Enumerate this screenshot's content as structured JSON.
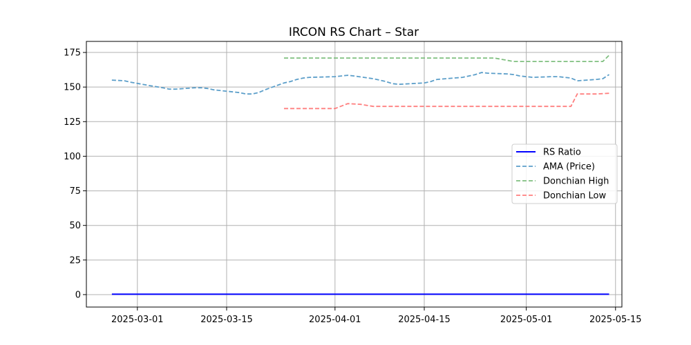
{
  "chart_data": {
    "type": "line",
    "title": "IRCON RS Chart – Star",
    "xlabel": "",
    "ylabel": "",
    "x_ticks": [
      "2025-03-01",
      "2025-03-15",
      "2025-04-01",
      "2025-04-15",
      "2025-05-01",
      "2025-05-15"
    ],
    "y_ticks": [
      0,
      25,
      50,
      75,
      100,
      125,
      150,
      175
    ],
    "xlim": [
      "2025-02-21",
      "2025-05-16"
    ],
    "ylim": [
      -9,
      183
    ],
    "grid": true,
    "legend_position": "center-right",
    "series": [
      {
        "name": "RS Ratio",
        "color": "#0000ff",
        "style": "solid",
        "x": [
          "2025-02-25",
          "2025-05-14"
        ],
        "y": [
          0.3,
          0.3
        ]
      },
      {
        "name": "AMA (Price)",
        "color": "#5b9ec9",
        "style": "dashed",
        "x": [
          "2025-02-25",
          "2025-02-27",
          "2025-02-28",
          "2025-03-03",
          "2025-03-05",
          "2025-03-06",
          "2025-03-07",
          "2025-03-10",
          "2025-03-11",
          "2025-03-12",
          "2025-03-13",
          "2025-03-17",
          "2025-03-18",
          "2025-03-19",
          "2025-03-20",
          "2025-03-21",
          "2025-03-24",
          "2025-03-25",
          "2025-03-26",
          "2025-03-27",
          "2025-03-28",
          "2025-04-01",
          "2025-04-02",
          "2025-04-03",
          "2025-04-04",
          "2025-04-07",
          "2025-04-08",
          "2025-04-09",
          "2025-04-10",
          "2025-04-11",
          "2025-04-15",
          "2025-04-16",
          "2025-04-17",
          "2025-04-21",
          "2025-04-22",
          "2025-04-23",
          "2025-04-24",
          "2025-04-25",
          "2025-04-28",
          "2025-04-29",
          "2025-04-30",
          "2025-05-02",
          "2025-05-05",
          "2025-05-06",
          "2025-05-07",
          "2025-05-08",
          "2025-05-09",
          "2025-05-12",
          "2025-05-13",
          "2025-05-14"
        ],
        "y": [
          155,
          154.5,
          153.5,
          151,
          149.5,
          148.5,
          148.5,
          149.5,
          149.5,
          149,
          148,
          146,
          145,
          145,
          146,
          148,
          153,
          154,
          155.5,
          156.5,
          157,
          157.5,
          158,
          158.5,
          158,
          156,
          155,
          154,
          152.5,
          152,
          153,
          154,
          155.5,
          157,
          158,
          159,
          160.5,
          160,
          159.5,
          159,
          158,
          157,
          157.5,
          157.5,
          157,
          156.5,
          154.5,
          155.5,
          156,
          159
        ]
      },
      {
        "name": "Donchian High",
        "color": "#7fbf7f",
        "style": "dashed",
        "x": [
          "2025-03-24",
          "2025-04-26",
          "2025-04-29",
          "2025-05-13",
          "2025-05-14"
        ],
        "y": [
          171,
          171,
          168.5,
          168.5,
          173
        ]
      },
      {
        "name": "Donchian Low",
        "color": "#ff7f7f",
        "style": "dashed",
        "x": [
          "2025-03-24",
          "2025-03-31",
          "2025-04-01",
          "2025-04-03",
          "2025-04-05",
          "2025-04-07",
          "2025-05-08",
          "2025-05-09",
          "2025-05-12",
          "2025-05-14"
        ],
        "y": [
          134.5,
          134.5,
          134.5,
          138,
          137.5,
          136,
          136,
          145,
          145,
          145.5
        ]
      }
    ]
  }
}
